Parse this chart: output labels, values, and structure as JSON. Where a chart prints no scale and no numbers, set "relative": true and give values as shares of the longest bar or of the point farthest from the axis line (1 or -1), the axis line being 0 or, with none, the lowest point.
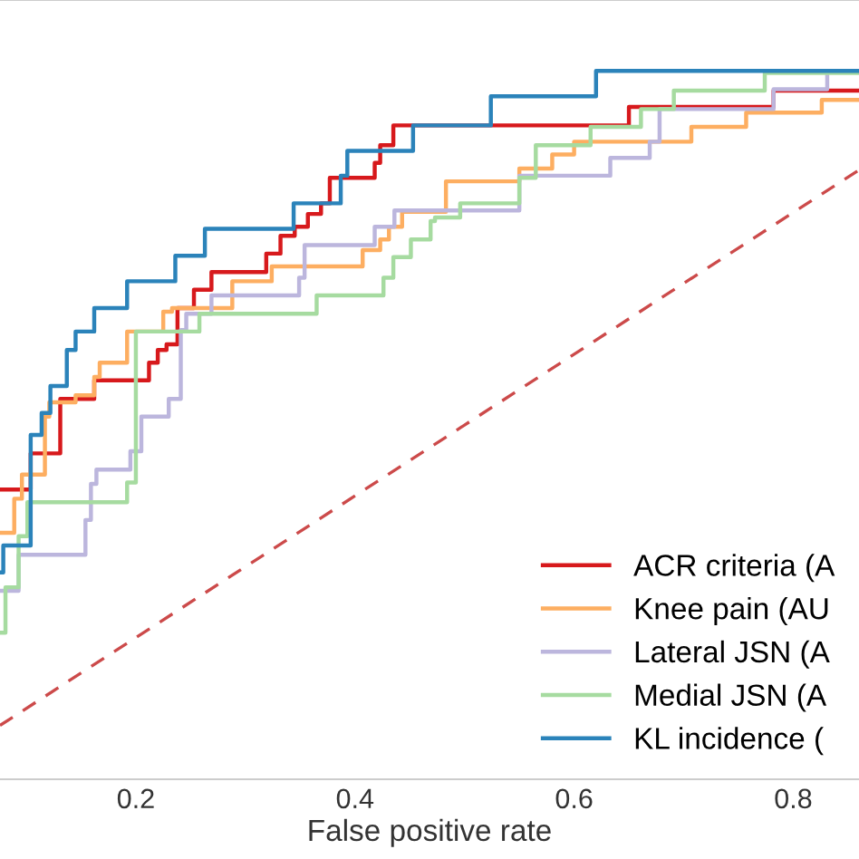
{
  "chart_data": {
    "type": "step",
    "xlabel": "False positive rate",
    "relative": true,
    "xlim": [
      0.076,
      0.86
    ],
    "xticks": [
      0.2,
      0.4,
      0.6,
      0.8
    ],
    "tick_labels": "x",
    "legend": "bottom right",
    "grid": false,
    "line_style": "solid",
    "series": [
      {
        "name": "ACR criteria (A",
        "color": "#d7191c",
        "x": [
          0.076,
          0.104,
          0.131,
          0.162,
          0.212,
          0.22,
          0.228,
          0.238,
          0.253,
          0.269,
          0.319,
          0.332,
          0.345,
          0.357,
          0.369,
          0.377,
          0.418,
          0.423,
          0.435,
          0.65,
          0.782,
          0.86
        ],
        "values": [
          0.409,
          0.46,
          0.537,
          0.563,
          0.588,
          0.606,
          0.614,
          0.665,
          0.691,
          0.716,
          0.742,
          0.767,
          0.78,
          0.798,
          0.813,
          0.849,
          0.87,
          0.895,
          0.923,
          0.949,
          0.972,
          0.972
        ]
      },
      {
        "name": "Knee pain (AU",
        "color": "#fdae61",
        "x": [
          0.076,
          0.089,
          0.096,
          0.117,
          0.121,
          0.145,
          0.162,
          0.167,
          0.192,
          0.225,
          0.233,
          0.288,
          0.324,
          0.407,
          0.423,
          0.431,
          0.443,
          0.483,
          0.55,
          0.58,
          0.6,
          0.707,
          0.757,
          0.826,
          0.86
        ],
        "values": [
          0.348,
          0.396,
          0.43,
          0.512,
          0.532,
          0.542,
          0.568,
          0.588,
          0.632,
          0.66,
          0.665,
          0.703,
          0.724,
          0.747,
          0.762,
          0.78,
          0.801,
          0.844,
          0.862,
          0.882,
          0.9,
          0.921,
          0.941,
          0.959,
          0.959
        ]
      },
      {
        "name": "Lateral JSN (A",
        "color": "#bcb6dd",
        "x": [
          0.076,
          0.093,
          0.154,
          0.159,
          0.164,
          0.195,
          0.205,
          0.23,
          0.241,
          0.246,
          0.269,
          0.349,
          0.354,
          0.418,
          0.436,
          0.55,
          0.633,
          0.669,
          0.678,
          0.782,
          0.831
        ],
        "values": [
          0.266,
          0.317,
          0.366,
          0.417,
          0.437,
          0.463,
          0.512,
          0.537,
          0.634,
          0.657,
          0.683,
          0.708,
          0.754,
          0.78,
          0.803,
          0.852,
          0.877,
          0.9,
          0.946,
          0.974,
          1.0
        ]
      },
      {
        "name": "Medial JSN (A",
        "color": "#a6dba0",
        "x": [
          0.076,
          0.081,
          0.093,
          0.101,
          0.192,
          0.2,
          0.258,
          0.365,
          0.426,
          0.435,
          0.451,
          0.469,
          0.473,
          0.496,
          0.55,
          0.565,
          0.615,
          0.661,
          0.691,
          0.774,
          0.86
        ],
        "values": [
          0.207,
          0.271,
          0.343,
          0.391,
          0.419,
          0.632,
          0.657,
          0.683,
          0.708,
          0.737,
          0.762,
          0.788,
          0.793,
          0.813,
          0.849,
          0.895,
          0.921,
          0.946,
          0.972,
          0.997,
          0.997
        ]
      },
      {
        "name": "KL incidence (",
        "color": "#2b83ba",
        "x": [
          0.076,
          0.079,
          0.104,
          0.114,
          0.122,
          0.137,
          0.145,
          0.162,
          0.192,
          0.236,
          0.263,
          0.344,
          0.387,
          0.393,
          0.453,
          0.524,
          0.62,
          0.86
        ],
        "values": [
          0.292,
          0.33,
          0.486,
          0.517,
          0.555,
          0.606,
          0.632,
          0.665,
          0.703,
          0.739,
          0.777,
          0.813,
          0.852,
          0.887,
          0.923,
          0.964,
          1.0,
          1.0
        ]
      },
      {
        "type": "line",
        "line_style": "dashed",
        "color": "#cc4a4a",
        "x": [
          0.076,
          0.86
        ],
        "values": [
          0.076,
          0.86
        ]
      }
    ]
  }
}
